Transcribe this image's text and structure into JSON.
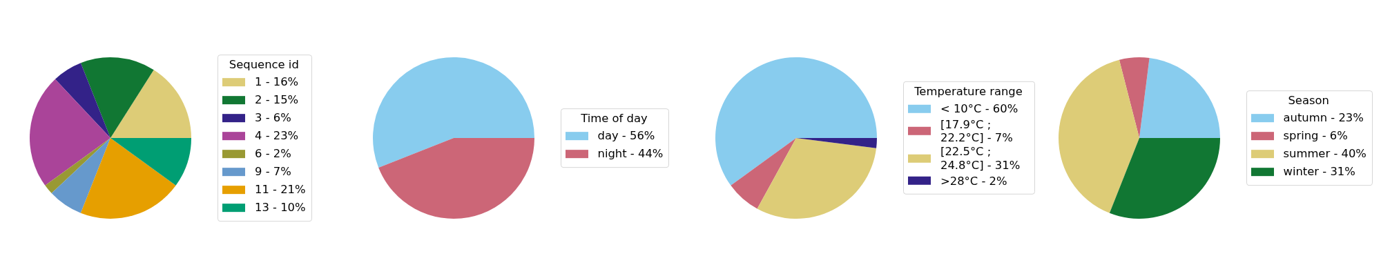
{
  "chart_data": [
    {
      "type": "pie",
      "legend_title": "Sequence id",
      "legend": "right",
      "categories": [
        "1 - 16%",
        "2 - 15%",
        "3 - 6%",
        "4 - 23%",
        "6 - 2%",
        "9 - 7%",
        "11 - 21%",
        "13 - 10%"
      ],
      "values": [
        16,
        15,
        6,
        23,
        2,
        7,
        21,
        10
      ],
      "colors": [
        "#ddcc77",
        "#117733",
        "#332288",
        "#aa4499",
        "#999933",
        "#6699cc",
        "#e69f00",
        "#009e73"
      ]
    },
    {
      "type": "pie",
      "legend_title": "Time of day",
      "legend": "right",
      "categories": [
        "day - 56%",
        "night - 44%"
      ],
      "values": [
        56,
        44
      ],
      "colors": [
        "#88ccee",
        "#cc6677"
      ]
    },
    {
      "type": "pie",
      "legend_title": "Temperature range",
      "legend": "right",
      "categories": [
        "< 10°C - 60%",
        "[17.9°C ; 22.2°C] - 7%",
        "[22.5°C ; 24.8°C] - 31%",
        ">28°C - 2%"
      ],
      "values": [
        60,
        7,
        31,
        2
      ],
      "colors": [
        "#88ccee",
        "#cc6677",
        "#ddcc77",
        "#332288"
      ]
    },
    {
      "type": "pie",
      "legend_title": "Season",
      "legend": "right",
      "categories": [
        "autumn - 23%",
        "spring - 6%",
        "summer - 40%",
        "winter - 31%"
      ],
      "values": [
        23,
        6,
        40,
        31
      ],
      "colors": [
        "#88ccee",
        "#cc6677",
        "#ddcc77",
        "#117733"
      ]
    }
  ]
}
